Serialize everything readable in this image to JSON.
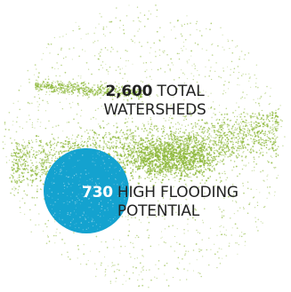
{
  "total": {
    "number": "2,600",
    "text_line1": "TOTAL",
    "text_line2": "WATERSHEDS",
    "color": "#8db83a"
  },
  "high_flooding": {
    "number": "730",
    "text_line1": "HIGH FLOODING",
    "text_line2": "POTENTIAL",
    "color": "#14a2cf"
  },
  "colors": {
    "text": "#222222",
    "background": "#ffffff"
  }
}
